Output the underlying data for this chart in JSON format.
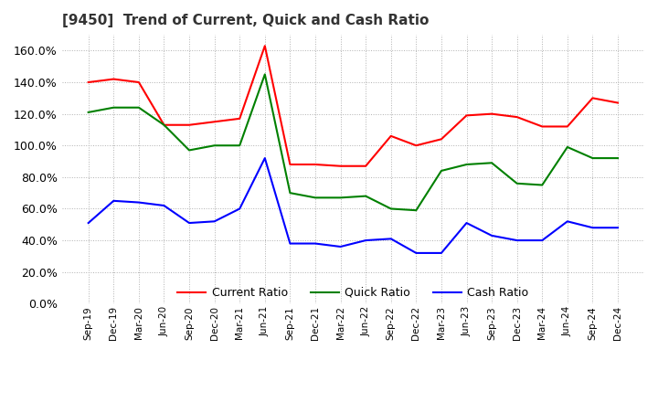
{
  "title": "[9450]  Trend of Current, Quick and Cash Ratio",
  "x_labels": [
    "Sep-19",
    "Dec-19",
    "Mar-20",
    "Jun-20",
    "Sep-20",
    "Dec-20",
    "Mar-21",
    "Jun-21",
    "Sep-21",
    "Dec-21",
    "Mar-22",
    "Jun-22",
    "Sep-22",
    "Dec-22",
    "Mar-23",
    "Jun-23",
    "Sep-23",
    "Dec-23",
    "Mar-24",
    "Jun-24",
    "Sep-24",
    "Dec-24"
  ],
  "current_ratio": [
    140,
    142,
    140,
    113,
    113,
    115,
    117,
    163,
    88,
    88,
    87,
    87,
    106,
    100,
    104,
    119,
    120,
    118,
    112,
    112,
    130,
    127
  ],
  "quick_ratio": [
    121,
    124,
    124,
    113,
    97,
    100,
    100,
    145,
    70,
    67,
    67,
    68,
    60,
    59,
    84,
    88,
    89,
    76,
    75,
    99,
    92,
    92
  ],
  "cash_ratio": [
    51,
    65,
    64,
    62,
    51,
    52,
    60,
    92,
    38,
    38,
    36,
    40,
    41,
    32,
    32,
    51,
    43,
    40,
    40,
    52,
    48,
    48
  ],
  "ylim": [
    0,
    170
  ],
  "yticks": [
    0,
    20,
    40,
    60,
    80,
    100,
    120,
    140,
    160
  ],
  "current_color": "#ff0000",
  "quick_color": "#008000",
  "cash_color": "#0000ff",
  "background_color": "#ffffff",
  "grid_color": "#b0b0b0"
}
